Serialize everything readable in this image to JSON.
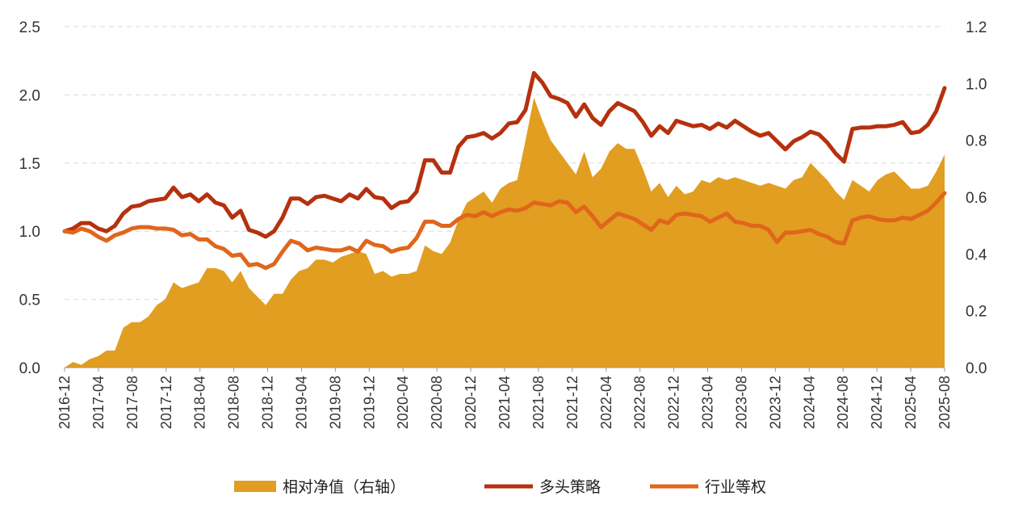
{
  "chart_data": {
    "type": "line",
    "title": "",
    "xlabel": "",
    "ylabel": "",
    "y_left_lim": [
      0,
      2.5
    ],
    "y_left_ticks": [
      "0.0",
      "0.5",
      "1.0",
      "1.5",
      "2.0",
      "2.5"
    ],
    "y_right_lim": [
      0,
      1.2
    ],
    "y_right_ticks": [
      "0.0",
      "0.2",
      "0.4",
      "0.6",
      "0.8",
      "1.0",
      "1.2"
    ],
    "grid": true,
    "legend_position": "bottom",
    "x_tick_labels": [
      "2016-12",
      "2017-04",
      "2017-08",
      "2017-12",
      "2018-04",
      "2018-08",
      "2018-12",
      "2019-04",
      "2019-08",
      "2019-12",
      "2020-04",
      "2020-08",
      "2020-12",
      "2021-04",
      "2021-08",
      "2021-12",
      "2022-04",
      "2022-08",
      "2022-12",
      "2023-04",
      "2023-08",
      "2023-12",
      "2024-04",
      "2024-08",
      "2024-12",
      "2025-04",
      "2025-08"
    ],
    "series": [
      {
        "name": "相对净值（右轴）",
        "kind": "area",
        "axis": "right",
        "color": "#E19E21",
        "values": [
          0.0,
          0.02,
          0.01,
          0.03,
          0.04,
          0.06,
          0.06,
          0.14,
          0.16,
          0.16,
          0.18,
          0.22,
          0.24,
          0.3,
          0.28,
          0.29,
          0.3,
          0.35,
          0.35,
          0.34,
          0.3,
          0.34,
          0.28,
          0.25,
          0.22,
          0.26,
          0.26,
          0.31,
          0.34,
          0.35,
          0.38,
          0.38,
          0.37,
          0.39,
          0.4,
          0.41,
          0.4,
          0.33,
          0.34,
          0.32,
          0.33,
          0.33,
          0.34,
          0.43,
          0.41,
          0.4,
          0.44,
          0.52,
          0.58,
          0.6,
          0.62,
          0.58,
          0.63,
          0.65,
          0.66,
          0.8,
          0.95,
          0.87,
          0.8,
          0.76,
          0.72,
          0.68,
          0.76,
          0.67,
          0.7,
          0.76,
          0.79,
          0.77,
          0.77,
          0.7,
          0.62,
          0.65,
          0.6,
          0.64,
          0.61,
          0.62,
          0.66,
          0.65,
          0.67,
          0.66,
          0.67,
          0.66,
          0.65,
          0.64,
          0.65,
          0.64,
          0.63,
          0.66,
          0.67,
          0.72,
          0.69,
          0.66,
          0.62,
          0.59,
          0.66,
          0.64,
          0.62,
          0.66,
          0.68,
          0.69,
          0.66,
          0.63,
          0.63,
          0.64,
          0.69,
          0.75
        ]
      },
      {
        "name": "多头策略",
        "kind": "line",
        "axis": "left",
        "color": "#B5310E",
        "values": [
          1.0,
          1.02,
          1.06,
          1.06,
          1.02,
          1.0,
          1.04,
          1.13,
          1.18,
          1.19,
          1.22,
          1.23,
          1.24,
          1.32,
          1.25,
          1.27,
          1.22,
          1.27,
          1.21,
          1.19,
          1.1,
          1.15,
          1.01,
          0.99,
          0.96,
          1.0,
          1.1,
          1.24,
          1.24,
          1.2,
          1.25,
          1.26,
          1.24,
          1.22,
          1.27,
          1.24,
          1.31,
          1.25,
          1.24,
          1.17,
          1.21,
          1.22,
          1.29,
          1.52,
          1.52,
          1.43,
          1.43,
          1.62,
          1.69,
          1.7,
          1.72,
          1.68,
          1.72,
          1.79,
          1.8,
          1.89,
          2.16,
          2.09,
          1.99,
          1.97,
          1.94,
          1.84,
          1.93,
          1.83,
          1.78,
          1.88,
          1.94,
          1.91,
          1.88,
          1.8,
          1.7,
          1.77,
          1.72,
          1.81,
          1.79,
          1.77,
          1.78,
          1.75,
          1.79,
          1.76,
          1.81,
          1.77,
          1.73,
          1.7,
          1.72,
          1.66,
          1.6,
          1.66,
          1.69,
          1.73,
          1.71,
          1.65,
          1.57,
          1.51,
          1.75,
          1.76,
          1.76,
          1.77,
          1.77,
          1.78,
          1.8,
          1.72,
          1.73,
          1.78,
          1.88,
          2.05
        ]
      },
      {
        "name": "行业等权",
        "kind": "line",
        "axis": "left",
        "color": "#E0661C",
        "values": [
          1.0,
          0.99,
          1.02,
          1.0,
          0.96,
          0.93,
          0.97,
          0.99,
          1.02,
          1.03,
          1.03,
          1.02,
          1.02,
          1.01,
          0.97,
          0.98,
          0.94,
          0.94,
          0.89,
          0.87,
          0.82,
          0.83,
          0.75,
          0.76,
          0.73,
          0.76,
          0.85,
          0.93,
          0.91,
          0.86,
          0.88,
          0.87,
          0.86,
          0.86,
          0.88,
          0.85,
          0.93,
          0.9,
          0.89,
          0.85,
          0.87,
          0.88,
          0.95,
          1.07,
          1.07,
          1.04,
          1.04,
          1.09,
          1.12,
          1.11,
          1.14,
          1.11,
          1.14,
          1.16,
          1.15,
          1.17,
          1.21,
          1.2,
          1.19,
          1.22,
          1.21,
          1.14,
          1.18,
          1.11,
          1.03,
          1.08,
          1.13,
          1.11,
          1.09,
          1.05,
          1.01,
          1.08,
          1.06,
          1.12,
          1.13,
          1.12,
          1.11,
          1.07,
          1.1,
          1.13,
          1.07,
          1.06,
          1.04,
          1.04,
          1.01,
          0.92,
          0.99,
          0.99,
          1.0,
          1.01,
          0.98,
          0.96,
          0.92,
          0.91,
          1.08,
          1.1,
          1.11,
          1.09,
          1.08,
          1.08,
          1.1,
          1.09,
          1.12,
          1.15,
          1.21,
          1.28
        ]
      }
    ]
  }
}
